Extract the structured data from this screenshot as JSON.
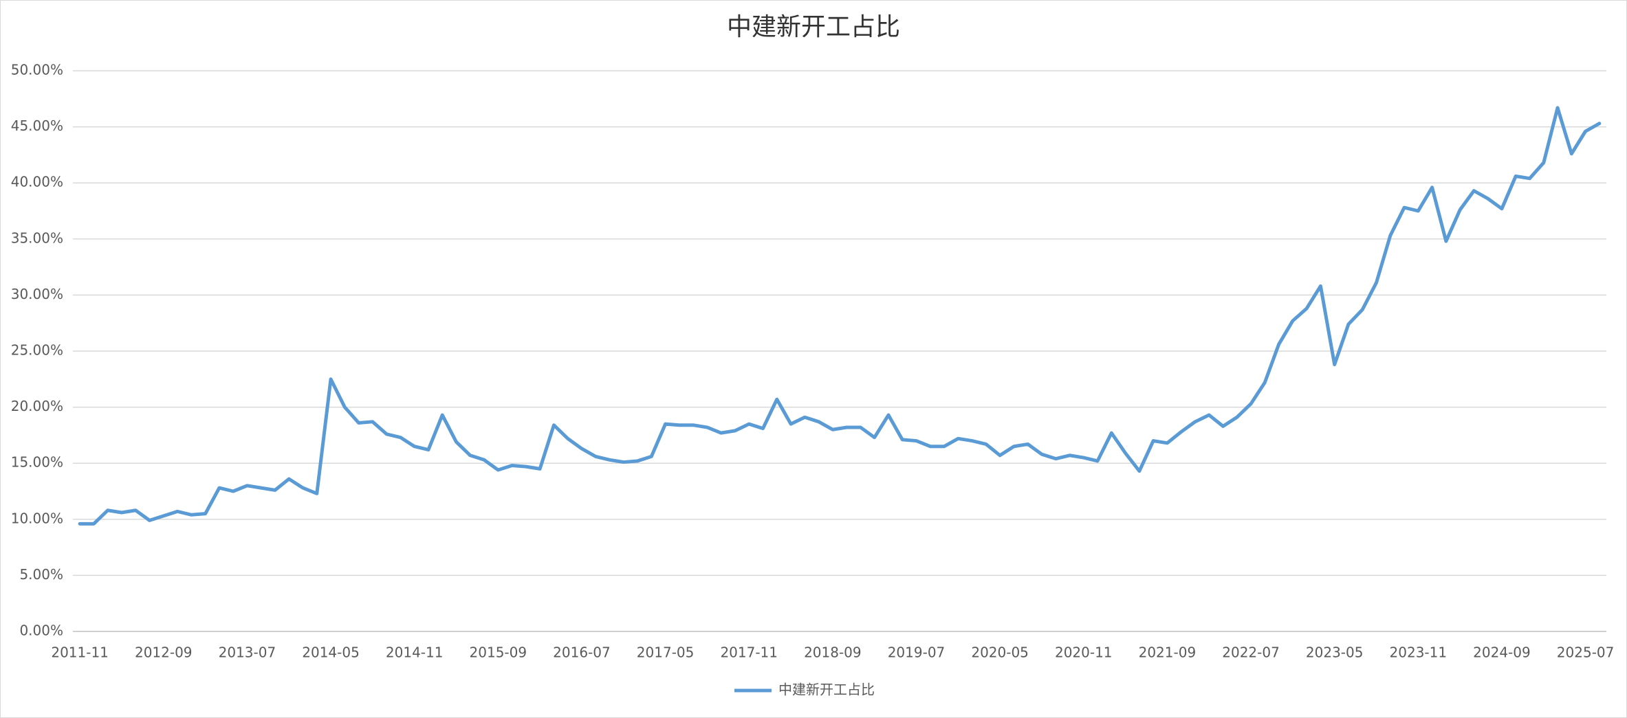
{
  "chart_data": {
    "type": "line",
    "title": "中建新开工占比",
    "categories": [
      "2011-11",
      null,
      null,
      null,
      null,
      null,
      "2012-09",
      null,
      null,
      null,
      null,
      null,
      "2013-07",
      null,
      null,
      null,
      null,
      null,
      "2014-05",
      null,
      null,
      null,
      null,
      null,
      "2014-11",
      null,
      null,
      null,
      null,
      null,
      "2015-09",
      null,
      null,
      null,
      null,
      null,
      "2016-07",
      null,
      null,
      null,
      null,
      null,
      "2017-05",
      null,
      null,
      null,
      null,
      null,
      "2017-11",
      null,
      null,
      null,
      null,
      null,
      "2018-09",
      null,
      null,
      null,
      null,
      null,
      "2019-07",
      null,
      null,
      null,
      null,
      null,
      "2020-05",
      null,
      null,
      null,
      null,
      null,
      "2020-11",
      null,
      null,
      null,
      null,
      null,
      "2021-09",
      null,
      null,
      null,
      null,
      null,
      "2022-07",
      null,
      null,
      null,
      null,
      null,
      "2023-05",
      null,
      null,
      null,
      null,
      null,
      "2023-11",
      null,
      null,
      null,
      null,
      null,
      "2024-09",
      null,
      null,
      null,
      null,
      null,
      "2025-07",
      null
    ],
    "series": [
      {
        "name": "中建新开工占比",
        "color": "#5b9bd5",
        "values": [
          9.6,
          9.6,
          10.8,
          10.6,
          10.8,
          9.9,
          10.3,
          10.7,
          10.4,
          10.5,
          12.8,
          12.5,
          13.0,
          12.8,
          12.6,
          13.6,
          12.8,
          12.3,
          22.5,
          20.0,
          18.6,
          18.7,
          17.6,
          17.3,
          16.5,
          16.2,
          19.3,
          16.9,
          15.7,
          15.3,
          14.4,
          14.8,
          14.7,
          14.5,
          18.4,
          17.2,
          16.3,
          15.6,
          15.3,
          15.1,
          15.2,
          15.6,
          18.5,
          18.4,
          18.4,
          18.2,
          17.7,
          17.9,
          18.5,
          18.1,
          20.7,
          18.5,
          19.1,
          18.7,
          18.0,
          18.2,
          18.2,
          17.3,
          19.3,
          17.1,
          17.0,
          16.5,
          16.5,
          17.2,
          17.0,
          16.7,
          15.7,
          16.5,
          16.7,
          15.8,
          15.4,
          15.7,
          15.5,
          15.2,
          17.7,
          15.9,
          14.3,
          17.0,
          16.8,
          17.8,
          18.7,
          19.3,
          18.3,
          19.1,
          20.3,
          22.2,
          25.6,
          27.7,
          28.8,
          30.8,
          23.8,
          27.4,
          28.7,
          31.1,
          35.3,
          37.8,
          37.5,
          39.6,
          34.8,
          37.6,
          39.3,
          38.6,
          37.7,
          40.6,
          40.4,
          41.8,
          46.7,
          42.6,
          44.6,
          45.3
        ]
      }
    ],
    "ylim": [
      0,
      50
    ],
    "yticks": [
      {
        "value": 0,
        "label": "0.00%"
      },
      {
        "value": 5,
        "label": "5.00%"
      },
      {
        "value": 10,
        "label": "10.00%"
      },
      {
        "value": 15,
        "label": "15.00%"
      },
      {
        "value": 20,
        "label": "20.00%"
      },
      {
        "value": 25,
        "label": "25.00%"
      },
      {
        "value": 30,
        "label": "30.00%"
      },
      {
        "value": 35,
        "label": "35.00%"
      },
      {
        "value": 40,
        "label": "40.00%"
      },
      {
        "value": 45,
        "label": "45.00%"
      },
      {
        "value": 50,
        "label": "50.00%"
      }
    ],
    "grid": true,
    "legend": "bottom"
  }
}
